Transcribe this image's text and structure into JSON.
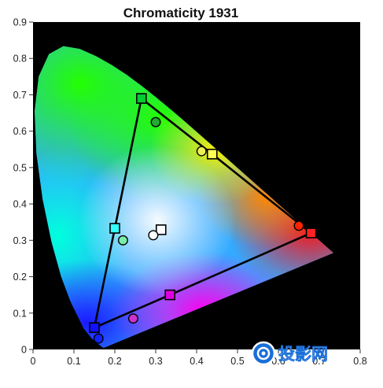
{
  "chart_data": {
    "type": "scatter",
    "title": "Chromaticity 1931",
    "xlabel": "",
    "ylabel": "",
    "xlim": [
      0,
      0.8
    ],
    "ylim": [
      0,
      0.9
    ],
    "x_ticks": [
      "0",
      "0.1",
      "0.2",
      "0.3",
      "0.4",
      "0.5",
      "0.6",
      "0.7",
      "0.8"
    ],
    "y_ticks": [
      "0",
      "0.1",
      "0.2",
      "0.3",
      "0.4",
      "0.5",
      "0.6",
      "0.7",
      "0.8",
      "0.9"
    ],
    "grid": false,
    "background": "#000000",
    "spectral_locus": [
      [
        0.1741,
        0.005
      ],
      [
        0.1738,
        0.0049
      ],
      [
        0.1733,
        0.0048
      ],
      [
        0.1726,
        0.0048
      ],
      [
        0.1714,
        0.0051
      ],
      [
        0.1689,
        0.0069
      ],
      [
        0.1644,
        0.0109
      ],
      [
        0.1566,
        0.0177
      ],
      [
        0.144,
        0.0297
      ],
      [
        0.1241,
        0.0578
      ],
      [
        0.0913,
        0.1327
      ],
      [
        0.0687,
        0.2007
      ],
      [
        0.0454,
        0.295
      ],
      [
        0.0235,
        0.4127
      ],
      [
        0.0082,
        0.5384
      ],
      [
        0.0039,
        0.6548
      ],
      [
        0.0139,
        0.7502
      ],
      [
        0.0389,
        0.812
      ],
      [
        0.0743,
        0.8338
      ],
      [
        0.1142,
        0.8262
      ],
      [
        0.1547,
        0.8059
      ],
      [
        0.1929,
        0.7816
      ],
      [
        0.2296,
        0.7543
      ],
      [
        0.2658,
        0.7243
      ],
      [
        0.3016,
        0.6923
      ],
      [
        0.3373,
        0.6589
      ],
      [
        0.3731,
        0.6245
      ],
      [
        0.4087,
        0.5896
      ],
      [
        0.4441,
        0.5547
      ],
      [
        0.4788,
        0.5202
      ],
      [
        0.5125,
        0.4866
      ],
      [
        0.5448,
        0.4544
      ],
      [
        0.5752,
        0.4242
      ],
      [
        0.6029,
        0.3965
      ],
      [
        0.627,
        0.3725
      ],
      [
        0.6482,
        0.3514
      ],
      [
        0.6658,
        0.334
      ],
      [
        0.6801,
        0.3197
      ],
      [
        0.6915,
        0.3083
      ],
      [
        0.7006,
        0.2993
      ],
      [
        0.7079,
        0.292
      ],
      [
        0.714,
        0.2859
      ],
      [
        0.719,
        0.2809
      ],
      [
        0.723,
        0.277
      ],
      [
        0.726,
        0.274
      ],
      [
        0.7283,
        0.2717
      ],
      [
        0.73,
        0.27
      ],
      [
        0.7311,
        0.2689
      ],
      [
        0.732,
        0.268
      ],
      [
        0.7327,
        0.2673
      ],
      [
        0.7334,
        0.2666
      ],
      [
        0.734,
        0.266
      ],
      [
        0.7344,
        0.2656
      ],
      [
        0.7346,
        0.2654
      ],
      [
        0.7347,
        0.2653
      ]
    ],
    "series": [
      {
        "marker": "square",
        "gamut_polygon": true,
        "points": [
          {
            "x": 0.265,
            "y": 0.69,
            "color": "#00cc33"
          },
          {
            "x": 0.438,
            "y": 0.537,
            "color": "#ffff55"
          },
          {
            "x": 0.68,
            "y": 0.32,
            "color": "#ff2222"
          },
          {
            "x": 0.335,
            "y": 0.15,
            "color": "#dd00dd"
          },
          {
            "x": 0.15,
            "y": 0.06,
            "color": "#1111ff"
          },
          {
            "x": 0.2,
            "y": 0.333,
            "color": "#33ffff"
          },
          {
            "x": 0.313,
            "y": 0.329,
            "color": "#ffffff"
          }
        ]
      },
      {
        "marker": "circle",
        "gamut_polygon": false,
        "points": [
          {
            "x": 0.3,
            "y": 0.625,
            "color": "#22aa33"
          },
          {
            "x": 0.412,
            "y": 0.545,
            "color": "#eeee55"
          },
          {
            "x": 0.65,
            "y": 0.34,
            "color": "#ff2200"
          },
          {
            "x": 0.245,
            "y": 0.085,
            "color": "#cc33cc"
          },
          {
            "x": 0.16,
            "y": 0.03,
            "color": "#1122ff"
          },
          {
            "x": 0.22,
            "y": 0.3,
            "color": "#77eeaa"
          },
          {
            "x": 0.294,
            "y": 0.314,
            "color": "#ffffff"
          }
        ]
      }
    ],
    "gamut_polygon_order": [
      0,
      1,
      2,
      3,
      4,
      5,
      0
    ]
  },
  "watermark": {
    "text": "投影网",
    "icon": "camera-lens-icon"
  }
}
